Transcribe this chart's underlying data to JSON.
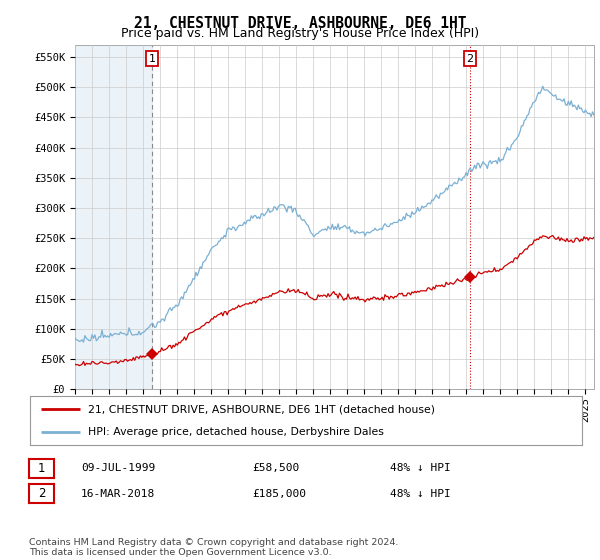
{
  "title": "21, CHESTNUT DRIVE, ASHBOURNE, DE6 1HT",
  "subtitle": "Price paid vs. HM Land Registry's House Price Index (HPI)",
  "ylabel_ticks": [
    "£0",
    "£50K",
    "£100K",
    "£150K",
    "£200K",
    "£250K",
    "£300K",
    "£350K",
    "£400K",
    "£450K",
    "£500K",
    "£550K"
  ],
  "ytick_values": [
    0,
    50000,
    100000,
    150000,
    200000,
    250000,
    300000,
    350000,
    400000,
    450000,
    500000,
    550000
  ],
  "ylim": [
    0,
    570000
  ],
  "xlim_start": 1995.0,
  "xlim_end": 2025.5,
  "purchase1_date": 1999.52,
  "purchase1_price": 58500,
  "purchase2_date": 2018.21,
  "purchase2_price": 185000,
  "red_color": "#cc0000",
  "blue_color": "#7ab0d4",
  "shade_color": "#ddeeff",
  "annotation_color": "#cc0000",
  "grid_color": "#cccccc",
  "legend_label_red": "21, CHESTNUT DRIVE, ASHBOURNE, DE6 1HT (detached house)",
  "legend_label_blue": "HPI: Average price, detached house, Derbyshire Dales",
  "table_row1": [
    "1",
    "09-JUL-1999",
    "£58,500",
    "48% ↓ HPI"
  ],
  "table_row2": [
    "2",
    "16-MAR-2018",
    "£185,000",
    "48% ↓ HPI"
  ],
  "footnote": "Contains HM Land Registry data © Crown copyright and database right 2024.\nThis data is licensed under the Open Government Licence v3.0.",
  "bg_color": "#ffffff",
  "title_fontsize": 10.5,
  "subtitle_fontsize": 9,
  "tick_fontsize": 7.5
}
